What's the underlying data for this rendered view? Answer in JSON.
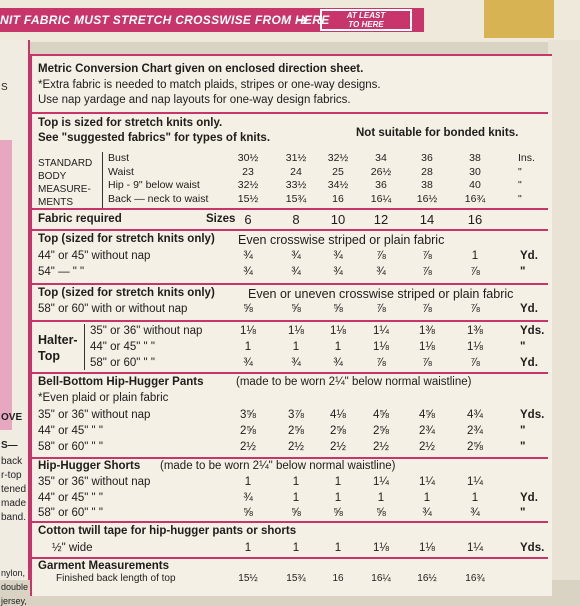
{
  "banner": {
    "text": "NIT FABRIC MUST STRETCH CROSSWISE FROM HERE",
    "arrow": "➔",
    "at_least_line1": "AT LEAST",
    "at_least_line2": "TO HERE",
    "accent_color": "#c7356a"
  },
  "left_margin": {
    "fragments": [
      "S",
      "OVE",
      "S—",
      "back",
      "r-top",
      "tened",
      "made",
      "band.",
      "nylon,",
      "double",
      "jersey,"
    ]
  },
  "header": {
    "line1": "Metric Conversion Chart given on enclosed direction sheet.",
    "line2": "*Extra fabric is needed to match plaids, stripes or one-way designs.",
    "line3": "Use nap yardage and nap layouts for one-way design fabrics."
  },
  "top_notes": {
    "left1": "Top is sized for stretch knits only.",
    "left2": "See \"suggested fabrics\" for types of knits.",
    "right": "Not suitable for bonded knits."
  },
  "body_measurements": {
    "label": [
      "STANDARD",
      "BODY",
      "MEASURE-",
      "MENTS"
    ],
    "rows": [
      {
        "name": "Bust",
        "values": [
          "30½",
          "31½",
          "32½",
          "34",
          "36",
          "38"
        ],
        "unit": "Ins."
      },
      {
        "name": "Waist",
        "values": [
          "23",
          "24",
          "25",
          "26½",
          "28",
          "30"
        ],
        "unit": "\""
      },
      {
        "name": "Hip - 9\" below waist",
        "values": [
          "32½",
          "33½",
          "34½",
          "36",
          "38",
          "40"
        ],
        "unit": "\""
      },
      {
        "name": "Back — neck to waist",
        "values": [
          "15½",
          "15¾",
          "16",
          "16¼",
          "16½",
          "16¾"
        ],
        "unit": "\""
      }
    ]
  },
  "sizes": {
    "fabric_required": "Fabric required",
    "label": "Sizes",
    "values": [
      "6",
      "8",
      "10",
      "12",
      "14",
      "16"
    ]
  },
  "top1": {
    "title": "Top (sized for stretch knits only)",
    "desc": "Even crosswise striped or plain fabric",
    "rows": [
      {
        "label": "44\" or 45\" without nap",
        "values": [
          "¾",
          "¾",
          "¾",
          "⅞",
          "⅞",
          "1"
        ],
        "unit": "Yd."
      },
      {
        "label": "54\"   —   \"   \"",
        "values": [
          "¾",
          "¾",
          "¾",
          "¾",
          "⅞",
          "⅞"
        ],
        "unit": "\""
      }
    ]
  },
  "top2": {
    "title": "Top (sized for stretch knits only)",
    "desc": "Even or uneven crosswise striped or plain fabric",
    "rows": [
      {
        "label": "58\" or 60\" with or without nap",
        "values": [
          "⅝",
          "⅝",
          "⅝",
          "⅞",
          "⅞",
          "⅞"
        ],
        "unit": "Yd."
      }
    ]
  },
  "halter": {
    "title_line1": "Halter-",
    "title_line2": "Top",
    "rows": [
      {
        "label": "35\" or 36\" without nap",
        "values": [
          "1⅛",
          "1⅛",
          "1⅛",
          "1¼",
          "1⅜",
          "1⅜"
        ],
        "unit": "Yds."
      },
      {
        "label": "44\" or 45\"   \"   \"",
        "values": [
          "1",
          "1",
          "1",
          "1⅛",
          "1⅛",
          "1⅛"
        ],
        "unit": "\""
      },
      {
        "label": "58\" or 60\"   \"   \"",
        "values": [
          "¾",
          "¾",
          "¾",
          "⅞",
          "⅞",
          "⅞"
        ],
        "unit": "Yd."
      }
    ]
  },
  "pants": {
    "title": "Bell-Bottom Hip-Hugger Pants",
    "title_note": "(made to be worn 2¼\" below normal waistline)",
    "desc": "*Even plaid or plain fabric",
    "rows": [
      {
        "label": "35\" or 36\" without nap",
        "values": [
          "3⅝",
          "3⅞",
          "4⅛",
          "4⅝",
          "4⅝",
          "4¾"
        ],
        "unit": "Yds."
      },
      {
        "label": "44\" or 45\"   \"   \"",
        "values": [
          "2⅝",
          "2⅝",
          "2⅝",
          "2⅝",
          "2¾",
          "2¾"
        ],
        "unit": "\""
      },
      {
        "label": "58\" or 60\"   \"   \"",
        "values": [
          "2½",
          "2½",
          "2½",
          "2½",
          "2½",
          "2⅝"
        ],
        "unit": "\""
      }
    ]
  },
  "shorts": {
    "title": "Hip-Hugger Shorts",
    "title_note": "(made to be worn 2¼\" below normal waistline)",
    "rows": [
      {
        "label": "35\" or 36\" without nap",
        "values": [
          "1",
          "1",
          "1",
          "1¼",
          "1¼",
          "1¼"
        ],
        "unit": ""
      },
      {
        "label": "44\" or 45\"   \"   \"",
        "values": [
          "¾",
          "1",
          "1",
          "1",
          "1",
          "1"
        ],
        "unit": "Yd."
      },
      {
        "label": "58\" or 60\"   \"   \"",
        "values": [
          "⅝",
          "⅝",
          "⅝",
          "⅝",
          "¾",
          "¾"
        ],
        "unit": "\""
      }
    ]
  },
  "tape": {
    "title": "Cotton twill tape for hip-hugger pants or shorts",
    "rows": [
      {
        "label": "½\" wide",
        "values": [
          "1",
          "1",
          "1",
          "1⅛",
          "1⅛",
          "1¼"
        ],
        "unit": "Yds."
      }
    ]
  },
  "garment": {
    "title": "Garment Measurements",
    "row_label": "Finished back length of top",
    "values": [
      "15½",
      "15¾",
      "16",
      "16¼",
      "16½",
      "16¾"
    ]
  }
}
